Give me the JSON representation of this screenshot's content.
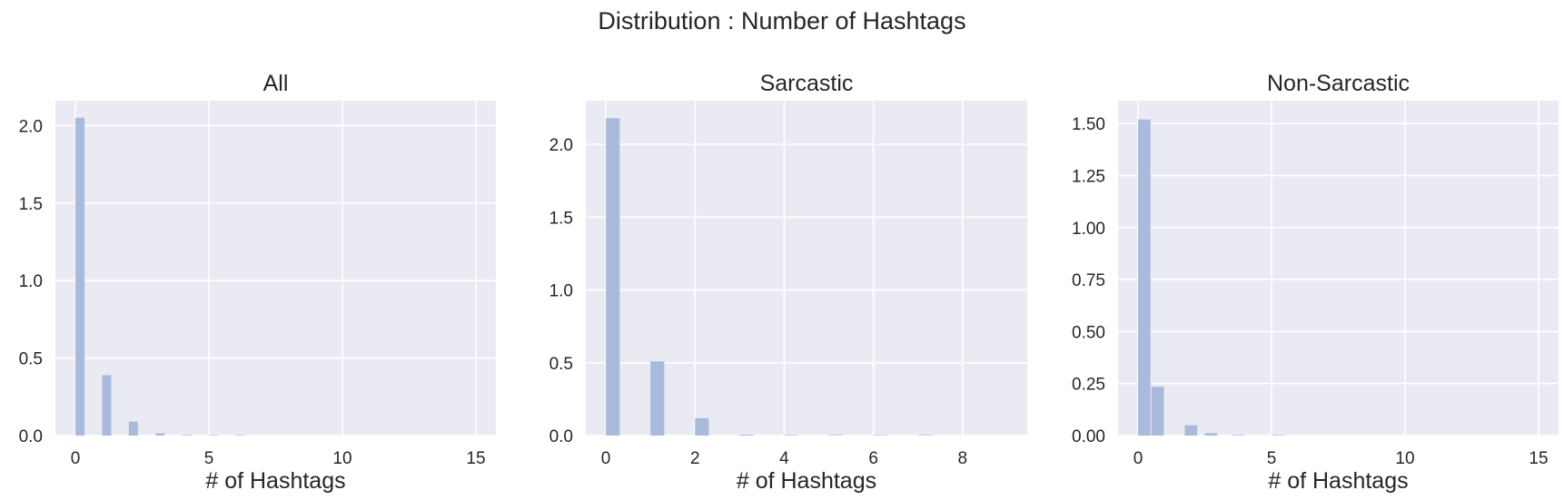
{
  "figure_title": "Distribution : Number of Hashtags",
  "colors": {
    "panel_bg": "#eaeaf2",
    "grid": "#ffffff",
    "bar": "#a9bbdc"
  },
  "chart_data": [
    {
      "type": "bar",
      "title": "All",
      "xlabel": "# of Hashtags",
      "ylabel": "",
      "xlim": [
        -0.75,
        15.75
      ],
      "ylim": [
        0,
        2.16
      ],
      "xticks": [
        0,
        5,
        10,
        15
      ],
      "yticks": [
        0.0,
        0.5,
        1.0,
        1.5,
        2.0
      ],
      "ytick_labels": [
        "0.0",
        "0.5",
        "1.0",
        "1.5",
        "2.0"
      ],
      "grid": true,
      "bin_width": 0.375,
      "bins": [
        {
          "x": 0,
          "value": 2.05
        },
        {
          "x": 1,
          "value": 0.39
        },
        {
          "x": 2,
          "value": 0.09
        },
        {
          "x": 3,
          "value": 0.015
        },
        {
          "x": 4,
          "value": 0.004
        },
        {
          "x": 5,
          "value": 0.002
        },
        {
          "x": 6,
          "value": 0.001
        }
      ]
    },
    {
      "type": "bar",
      "title": "Sarcastic",
      "xlabel": "# of Hashtags",
      "ylabel": "",
      "xlim": [
        -0.45,
        9.45
      ],
      "ylim": [
        0,
        2.3
      ],
      "xticks": [
        0,
        2,
        4,
        6,
        8
      ],
      "yticks": [
        0.0,
        0.5,
        1.0,
        1.5,
        2.0
      ],
      "ytick_labels": [
        "0.0",
        "0.5",
        "1.0",
        "1.5",
        "2.0"
      ],
      "grid": true,
      "bin_width": 0.33,
      "bins": [
        {
          "x": 0,
          "value": 2.18
        },
        {
          "x": 1,
          "value": 0.51
        },
        {
          "x": 2,
          "value": 0.12
        },
        {
          "x": 3,
          "value": 0.006
        },
        {
          "x": 4,
          "value": 0.003
        },
        {
          "x": 5,
          "value": 0.002
        },
        {
          "x": 6,
          "value": 0.003
        },
        {
          "x": 7,
          "value": 0.001
        }
      ]
    },
    {
      "type": "bar",
      "title": "Non-Sarcastic",
      "xlabel": "# of Hashtags",
      "ylabel": "",
      "xlim": [
        -0.75,
        15.75
      ],
      "ylim": [
        0,
        1.61
      ],
      "xticks": [
        0,
        5,
        10,
        15
      ],
      "yticks": [
        0.0,
        0.25,
        0.5,
        0.75,
        1.0,
        1.25,
        1.5
      ],
      "ytick_labels": [
        "0.00",
        "0.25",
        "0.50",
        "0.75",
        "1.00",
        "1.25",
        "1.50"
      ],
      "grid": true,
      "bin_width": 0.5,
      "bins": [
        {
          "x": 0,
          "value": 1.52
        },
        {
          "x": 0.5,
          "value": 0.235
        },
        {
          "x": 1.75,
          "value": 0.05
        },
        {
          "x": 2.5,
          "value": 0.012
        },
        {
          "x": 3.5,
          "value": 0.003
        },
        {
          "x": 5,
          "value": 0.001
        }
      ]
    }
  ]
}
